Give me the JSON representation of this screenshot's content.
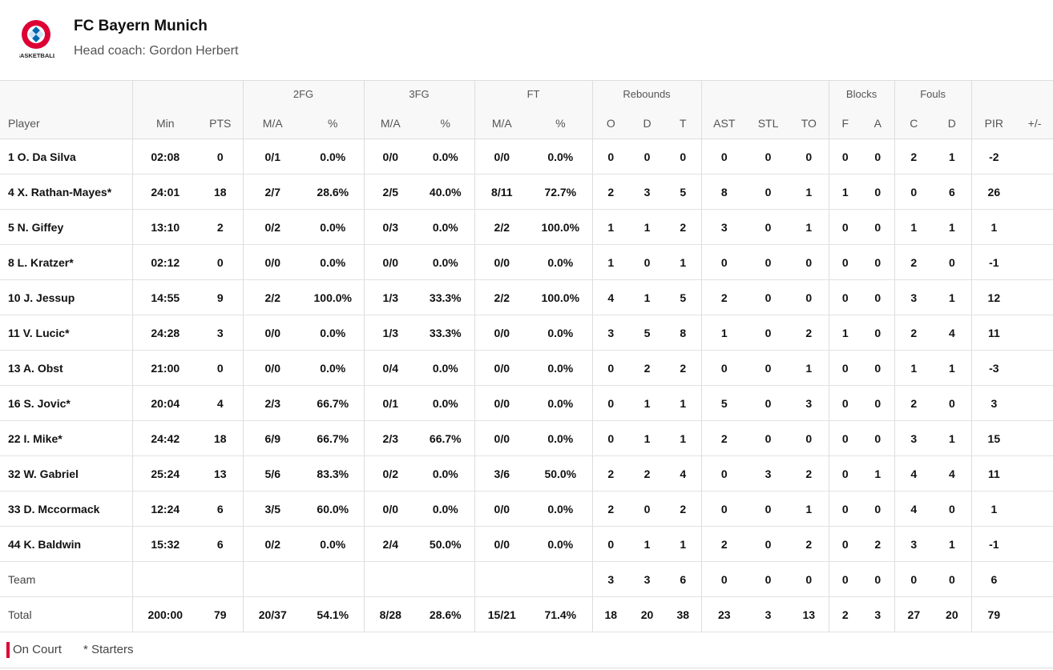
{
  "header": {
    "title": "FC Bayern Munich",
    "subtitle": "Head coach: Gordon Herbert",
    "logo_caption": "BASKETBALL"
  },
  "table": {
    "groups": [
      {
        "columns": [
          "Player"
        ]
      },
      {
        "columns": [
          "Min",
          "PTS"
        ]
      },
      {
        "title": "2FG",
        "columns": [
          "M/A",
          "%"
        ]
      },
      {
        "title": "3FG",
        "columns": [
          "M/A",
          "%"
        ]
      },
      {
        "title": "FT",
        "columns": [
          "M/A",
          "%"
        ]
      },
      {
        "title": "Rebounds",
        "columns": [
          "O",
          "D",
          "T"
        ]
      },
      {
        "columns": [
          "AST",
          "STL",
          "TO"
        ]
      },
      {
        "title": "Blocks",
        "columns": [
          "F",
          "A"
        ]
      },
      {
        "title": "Fouls",
        "columns": [
          "C",
          "D"
        ]
      },
      {
        "columns": [
          "PIR",
          "+/-"
        ]
      }
    ],
    "rows": [
      [
        "1 O. Da Silva",
        "02:08",
        0,
        "0/1",
        "0.0%",
        "0/0",
        "0.0%",
        "0/0",
        "0.0%",
        0,
        0,
        0,
        0,
        0,
        0,
        0,
        0,
        2,
        1,
        -2,
        null
      ],
      [
        "4 X. Rathan-Mayes*",
        "24:01",
        18,
        "2/7",
        "28.6%",
        "2/5",
        "40.0%",
        "8/11",
        "72.7%",
        2,
        3,
        5,
        8,
        0,
        1,
        1,
        0,
        0,
        6,
        26,
        null
      ],
      [
        "5 N. Giffey",
        "13:10",
        2,
        "0/2",
        "0.0%",
        "0/3",
        "0.0%",
        "2/2",
        "100.0%",
        1,
        1,
        2,
        3,
        0,
        1,
        0,
        0,
        1,
        1,
        1,
        null
      ],
      [
        "8 L. Kratzer*",
        "02:12",
        0,
        "0/0",
        "0.0%",
        "0/0",
        "0.0%",
        "0/0",
        "0.0%",
        1,
        0,
        1,
        0,
        0,
        0,
        0,
        0,
        2,
        0,
        -1,
        null
      ],
      [
        "10 J. Jessup",
        "14:55",
        9,
        "2/2",
        "100.0%",
        "1/3",
        "33.3%",
        "2/2",
        "100.0%",
        4,
        1,
        5,
        2,
        0,
        0,
        0,
        0,
        3,
        1,
        12,
        null
      ],
      [
        "11 V. Lucic*",
        "24:28",
        3,
        "0/0",
        "0.0%",
        "1/3",
        "33.3%",
        "0/0",
        "0.0%",
        3,
        5,
        8,
        1,
        0,
        2,
        1,
        0,
        2,
        4,
        11,
        null
      ],
      [
        "13 A. Obst",
        "21:00",
        0,
        "0/0",
        "0.0%",
        "0/4",
        "0.0%",
        "0/0",
        "0.0%",
        0,
        2,
        2,
        0,
        0,
        1,
        0,
        0,
        1,
        1,
        -3,
        null
      ],
      [
        "16 S. Jovic*",
        "20:04",
        4,
        "2/3",
        "66.7%",
        "0/1",
        "0.0%",
        "0/0",
        "0.0%",
        0,
        1,
        1,
        5,
        0,
        3,
        0,
        0,
        2,
        0,
        3,
        null
      ],
      [
        "22 I. Mike*",
        "24:42",
        18,
        "6/9",
        "66.7%",
        "2/3",
        "66.7%",
        "0/0",
        "0.0%",
        0,
        1,
        1,
        2,
        0,
        0,
        0,
        0,
        3,
        1,
        15,
        null
      ],
      [
        "32 W. Gabriel",
        "25:24",
        13,
        "5/6",
        "83.3%",
        "0/2",
        "0.0%",
        "3/6",
        "50.0%",
        2,
        2,
        4,
        0,
        3,
        2,
        0,
        1,
        4,
        4,
        11,
        null
      ],
      [
        "33 D. Mccormack",
        "12:24",
        6,
        "3/5",
        "60.0%",
        "0/0",
        "0.0%",
        "0/0",
        "0.0%",
        2,
        0,
        2,
        0,
        0,
        1,
        0,
        0,
        4,
        0,
        1,
        null
      ],
      [
        "44 K. Baldwin",
        "15:32",
        6,
        "0/2",
        "0.0%",
        "2/4",
        "50.0%",
        "0/0",
        "0.0%",
        0,
        1,
        1,
        2,
        0,
        2,
        0,
        2,
        3,
        1,
        -1,
        null
      ],
      [
        "Team",
        null,
        null,
        null,
        null,
        null,
        null,
        null,
        null,
        3,
        3,
        6,
        0,
        0,
        0,
        0,
        0,
        0,
        0,
        6,
        null
      ],
      [
        "Total",
        "200:00",
        79,
        "20/37",
        "54.1%",
        "8/28",
        "28.6%",
        "15/21",
        "71.4%",
        18,
        20,
        38,
        23,
        3,
        13,
        2,
        3,
        27,
        20,
        79,
        null
      ]
    ]
  },
  "legend": {
    "on_court": "On Court",
    "starters": "* Starters"
  }
}
